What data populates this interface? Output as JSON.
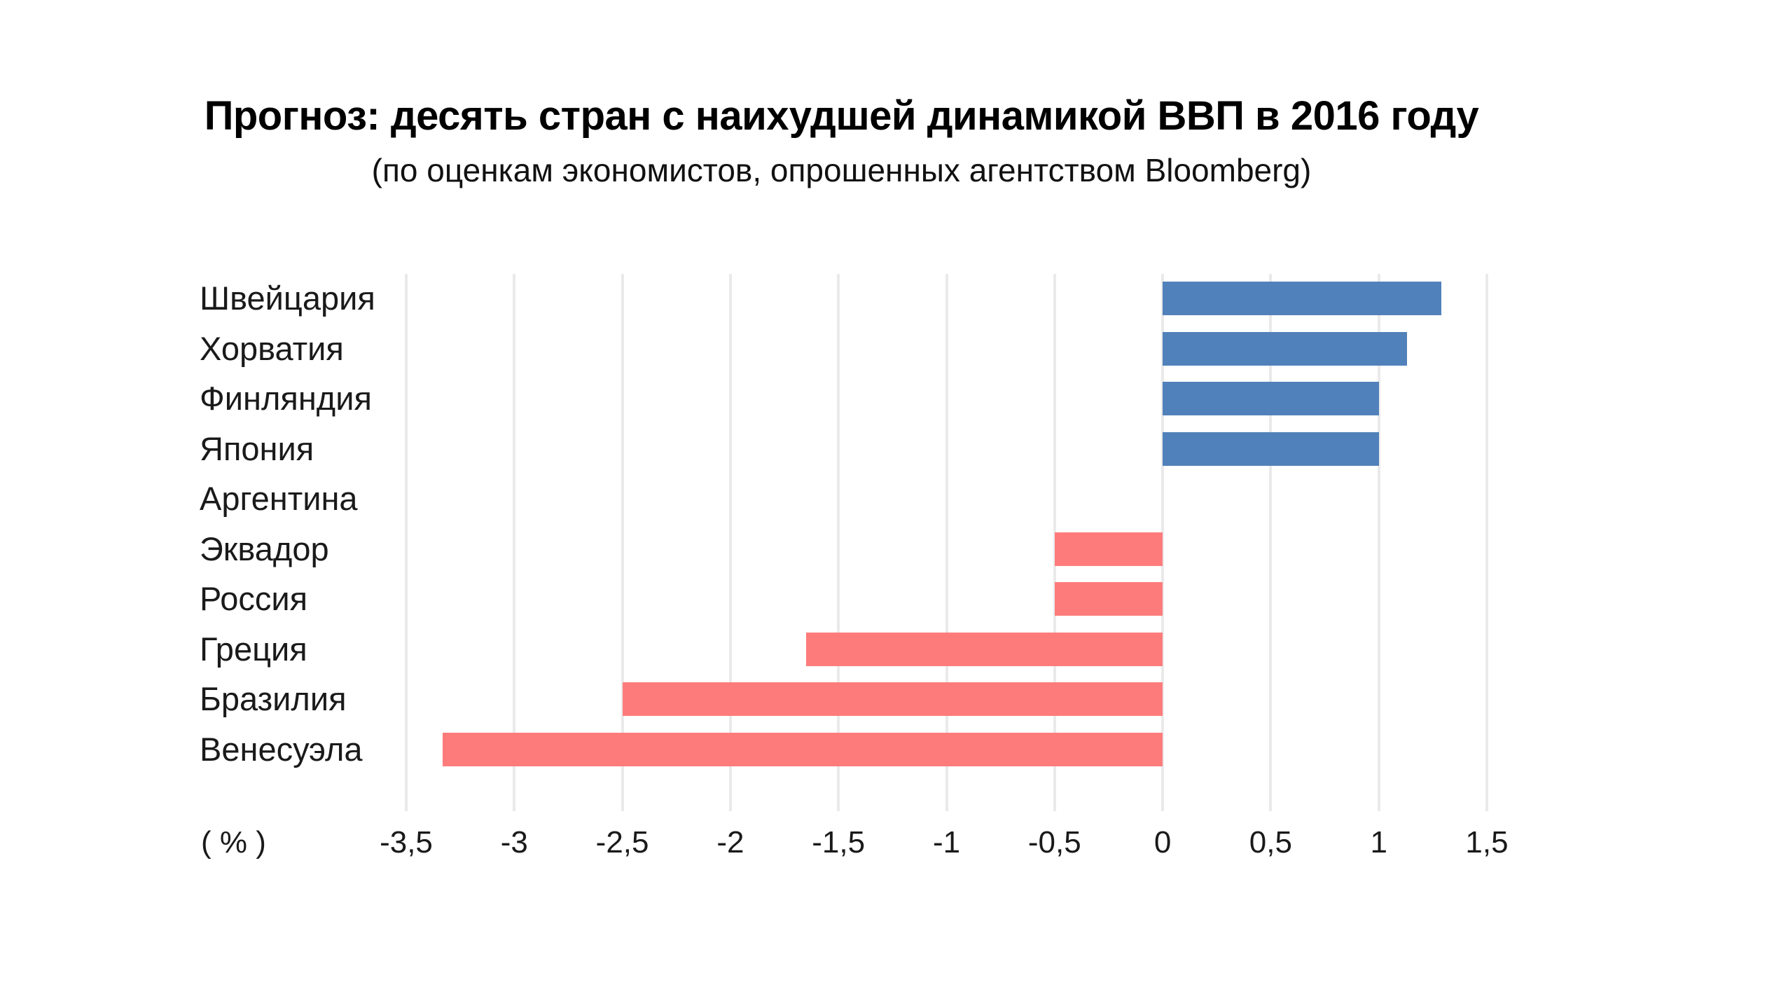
{
  "title": "Прогноз: десять стран с наихудшей динамикой ВВП в 2016 году",
  "subtitle": "(по оценкам экономистов, опрошенных агентством Bloomberg)",
  "axis_unit_label": "( % )",
  "colors": {
    "positive_bar": "#5181BA",
    "negative_bar": "#FD7C7B",
    "gridline": "#EAEAEA",
    "text": "#1A1A1A"
  },
  "chart_data": {
    "type": "bar",
    "orientation": "horizontal",
    "title": "Прогноз: десять стран с наихудшей динамикой ВВП в 2016 году",
    "subtitle": "(по оценкам экономистов, опрошенных агентством Bloomberg)",
    "xlabel": "( % )",
    "categories": [
      "Швейцария",
      "Хорватия",
      "Финляндия",
      "Япония",
      "Аргентина",
      "Эквадор",
      "Россия",
      "Греция",
      "Бразилия",
      "Венесуэла"
    ],
    "values": [
      1.29,
      1.13,
      1.0,
      1.0,
      0,
      -0.5,
      -0.5,
      -1.65,
      -2.5,
      -3.33
    ],
    "xlim": [
      -3.5,
      1.5
    ],
    "xtick_values": [
      -3.5,
      -3,
      -2.5,
      -2,
      -1.5,
      -1,
      -0.5,
      0,
      0.5,
      1,
      1.5
    ],
    "xtick_labels": [
      "-3,5",
      "-3",
      "-2,5",
      "-2",
      "-1,5",
      "-1",
      "-0,5",
      "0",
      "0,5",
      "1",
      "1,5"
    ],
    "grid": true,
    "legend": false
  }
}
